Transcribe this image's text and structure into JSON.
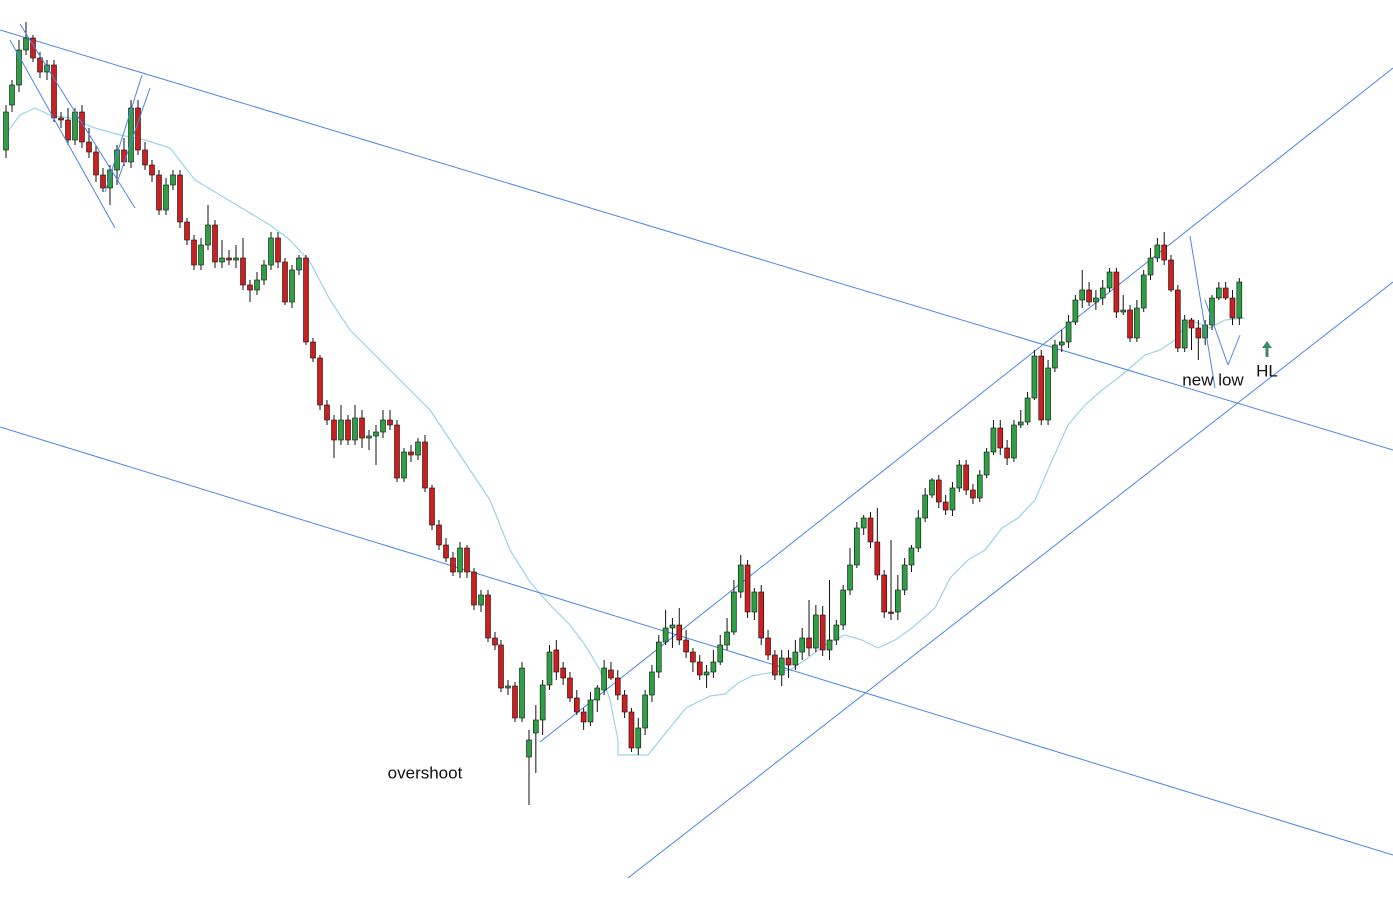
{
  "chart_data": {
    "type": "candlestick",
    "title": "",
    "xlabel": "",
    "ylabel": "",
    "axes_visible": false,
    "grid": false,
    "ylim": [
      0,
      899
    ],
    "colors": {
      "up_candle": "#2ea043",
      "down_candle": "#cc1f1f",
      "wick": "#111111",
      "trendline": "#4a86e8",
      "moving_average": "#9cd3ea",
      "arrow": "#3d8a68"
    },
    "ohlc": [
      [
        757,
        740,
        805,
        730
      ],
      [
        733,
        720,
        773,
        705
      ],
      [
        720,
        685,
        735,
        680
      ],
      [
        685,
        652,
        690,
        645
      ],
      [
        650,
        672,
        680,
        640
      ],
      [
        668,
        678,
        685,
        662
      ],
      [
        678,
        698,
        702,
        672
      ],
      [
        698,
        712,
        715,
        690
      ],
      [
        712,
        722,
        730,
        708
      ],
      [
        722,
        700,
        726,
        692
      ],
      [
        700,
        688,
        712,
        685
      ],
      [
        690,
        668,
        695,
        660
      ],
      [
        670,
        678,
        680,
        662
      ],
      [
        678,
        695,
        700,
        670
      ],
      [
        695,
        712,
        718,
        690
      ],
      [
        712,
        748,
        752,
        708
      ],
      [
        748,
        728,
        755,
        718
      ],
      [
        728,
        695,
        735,
        690
      ],
      [
        695,
        672,
        702,
        665
      ],
      [
        672,
        642,
        678,
        635
      ],
      [
        642,
        628,
        645,
        610
      ],
      [
        628,
        625,
        648,
        618
      ],
      [
        625,
        640,
        645,
        608
      ],
      [
        640,
        652,
        658,
        630
      ],
      [
        652,
        662,
        672,
        648
      ],
      [
        662,
        675,
        680,
        655
      ],
      [
        675,
        672,
        688,
        665
      ],
      [
        672,
        662,
        678,
        650
      ],
      [
        662,
        645,
        665,
        635
      ],
      [
        645,
        632,
        650,
        618
      ],
      [
        632,
        592,
        635,
        580
      ],
      [
        592,
        565,
        598,
        555
      ],
      [
        565,
        612,
        618,
        560
      ],
      [
        612,
        592,
        620,
        588
      ],
      [
        592,
        638,
        645,
        585
      ],
      [
        638,
        655,
        660,
        630
      ],
      [
        655,
        675,
        680,
        650
      ],
      [
        675,
        658,
        686,
        650
      ],
      [
        658,
        665,
        678,
        650
      ],
      [
        665,
        652,
        670,
        640
      ],
      [
        652,
        638,
        660,
        628
      ],
      [
        638,
        648,
        656,
        600
      ],
      [
        648,
        615,
        652,
        605
      ],
      [
        615,
        650,
        656,
        606
      ],
      [
        650,
        640,
        660,
        580
      ],
      [
        640,
        625,
        645,
        620
      ],
      [
        625,
        590,
        630,
        585
      ],
      [
        590,
        565,
        595,
        548
      ],
      [
        565,
        528,
        568,
        522
      ],
      [
        528,
        518,
        535,
        515
      ],
      [
        518,
        542,
        548,
        512
      ],
      [
        542,
        575,
        580,
        508
      ],
      [
        575,
        612,
        618,
        570
      ],
      [
        612,
        612,
        620,
        540
      ],
      [
        612,
        590,
        620,
        575
      ],
      [
        590,
        565,
        595,
        558
      ],
      [
        565,
        548,
        572,
        545
      ],
      [
        548,
        518,
        552,
        510
      ],
      [
        518,
        495,
        522,
        488
      ],
      [
        495,
        480,
        498,
        478
      ],
      [
        480,
        502,
        508,
        475
      ],
      [
        502,
        510,
        515,
        495
      ],
      [
        510,
        488,
        516,
        482
      ],
      [
        488,
        465,
        492,
        460
      ],
      [
        465,
        490,
        495,
        460
      ],
      [
        490,
        498,
        504,
        484
      ],
      [
        498,
        475,
        502,
        470
      ],
      [
        475,
        452,
        478,
        448
      ],
      [
        452,
        428,
        455,
        420
      ],
      [
        428,
        448,
        455,
        420
      ],
      [
        448,
        458,
        465,
        440
      ],
      [
        458,
        425,
        462,
        420
      ],
      [
        425,
        422,
        428,
        410
      ],
      [
        422,
        398,
        425,
        392
      ],
      [
        398,
        356,
        400,
        350
      ],
      [
        356,
        420,
        425,
        350
      ],
      [
        420,
        368,
        425,
        360
      ],
      [
        368,
        345,
        372,
        340
      ],
      [
        345,
        342,
        352,
        330
      ],
      [
        342,
        322,
        348,
        315
      ],
      [
        322,
        300,
        325,
        295
      ],
      [
        300,
        290,
        308,
        270
      ],
      [
        290,
        302,
        306,
        282
      ],
      [
        302,
        298,
        310,
        290
      ],
      [
        298,
        288,
        305,
        280
      ],
      [
        288,
        272,
        292,
        268
      ],
      [
        272,
        312,
        318,
        268
      ],
      [
        312,
        310,
        315,
        295
      ],
      [
        310,
        338,
        342,
        305
      ],
      [
        338,
        308,
        342,
        300
      ],
      [
        308,
        275,
        312,
        270
      ],
      [
        275,
        258,
        280,
        248
      ],
      [
        258,
        245,
        262,
        238
      ],
      [
        245,
        260,
        265,
        232
      ],
      [
        260,
        290,
        292,
        255
      ],
      [
        290,
        348,
        352,
        285
      ],
      [
        348,
        320,
        352,
        315
      ],
      [
        320,
        328,
        350,
        318
      ],
      [
        328,
        338,
        360,
        320
      ],
      [
        338,
        325,
        345,
        320
      ],
      [
        325,
        298,
        330,
        295
      ],
      [
        298,
        288,
        300,
        282
      ],
      [
        288,
        298,
        300,
        282
      ],
      [
        298,
        318,
        325,
        290
      ],
      [
        318,
        282,
        325,
        278
      ]
    ],
    "moving_average": [
      [
        618,
        755
      ],
      [
        648,
        755
      ],
      [
        664,
        735
      ],
      [
        686,
        708
      ],
      [
        710,
        696
      ],
      [
        725,
        694
      ],
      [
        738,
        683
      ],
      [
        752,
        676
      ],
      [
        774,
        672
      ],
      [
        790,
        670
      ],
      [
        805,
        660
      ],
      [
        825,
        645
      ],
      [
        845,
        635
      ],
      [
        862,
        640
      ],
      [
        878,
        648
      ],
      [
        895,
        640
      ],
      [
        912,
        628
      ],
      [
        935,
        608
      ],
      [
        950,
        578
      ],
      [
        968,
        560
      ],
      [
        985,
        550
      ],
      [
        1002,
        528
      ],
      [
        1018,
        518
      ],
      [
        1035,
        500
      ],
      [
        1050,
        465
      ],
      [
        1068,
        425
      ],
      [
        1085,
        405
      ],
      [
        1102,
        390
      ],
      [
        1118,
        378
      ],
      [
        1130,
        368
      ],
      [
        1145,
        355
      ],
      [
        1160,
        350
      ],
      [
        1175,
        340
      ],
      [
        1190,
        320
      ],
      [
        1210,
        328
      ],
      [
        1225,
        320
      ],
      [
        1245,
        318
      ]
    ],
    "trendlines": [
      [
        [
          0,
          30
        ],
        [
          1393,
          450
        ]
      ],
      [
        [
          0,
          427
        ],
        [
          1393,
          855
        ]
      ],
      [
        [
          540,
          742
        ],
        [
          1393,
          68
        ]
      ],
      [
        [
          628,
          878
        ],
        [
          1393,
          282
        ]
      ]
    ],
    "annotations": [
      {
        "text": "overshoot",
        "x": 425,
        "y": 774
      },
      {
        "text": "new low",
        "x": 1213,
        "y": 381
      },
      {
        "text": "HL",
        "x": 1267,
        "y": 372
      }
    ]
  }
}
